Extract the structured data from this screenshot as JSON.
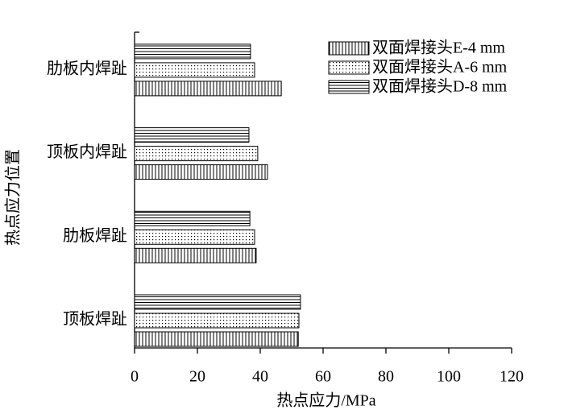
{
  "chart_data": {
    "type": "barh",
    "xlabel": "热点应力/MPa",
    "ylabel": "热点应力位置",
    "categories": [
      "顶板焊趾",
      "肋板焊趾",
      "顶板内焊趾",
      "肋板内焊趾"
    ],
    "series": [
      {
        "name": "双面焊接头E-4 mm",
        "color": "#000000",
        "pattern": "vertical",
        "values": [
          52.1,
          38.7,
          42.3,
          46.7
        ]
      },
      {
        "name": "双面焊接头A-6 mm",
        "color": "#000000",
        "pattern": "dots",
        "values": [
          52.3,
          38.2,
          39.2,
          38.2
        ]
      },
      {
        "name": "双面焊接头D-8 mm",
        "color": "#000000",
        "pattern": "horizontal",
        "values": [
          52.8,
          36.7,
          36.4,
          36.9
        ]
      }
    ],
    "xlim": [
      0,
      120
    ],
    "xticks": [
      0,
      20,
      40,
      60,
      80,
      100,
      120
    ],
    "legend": "upper right"
  }
}
